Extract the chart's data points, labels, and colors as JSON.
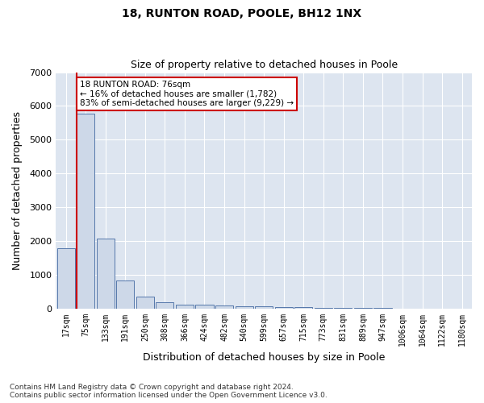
{
  "title1": "18, RUNTON ROAD, POOLE, BH12 1NX",
  "title2": "Size of property relative to detached houses in Poole",
  "xlabel": "Distribution of detached houses by size in Poole",
  "ylabel": "Number of detached properties",
  "footnote1": "Contains HM Land Registry data © Crown copyright and database right 2024.",
  "footnote2": "Contains public sector information licensed under the Open Government Licence v3.0.",
  "bar_labels": [
    "17sqm",
    "75sqm",
    "133sqm",
    "191sqm",
    "250sqm",
    "308sqm",
    "366sqm",
    "424sqm",
    "482sqm",
    "540sqm",
    "599sqm",
    "657sqm",
    "715sqm",
    "773sqm",
    "831sqm",
    "889sqm",
    "947sqm",
    "1006sqm",
    "1064sqm",
    "1122sqm",
    "1180sqm"
  ],
  "bar_values": [
    1780,
    5780,
    2060,
    820,
    360,
    195,
    120,
    100,
    95,
    70,
    55,
    45,
    40,
    5,
    5,
    5,
    5,
    3,
    3,
    3,
    3
  ],
  "bar_color": "#cdd8e8",
  "bar_edgecolor": "#5577aa",
  "red_line_color": "#cc0000",
  "ylim": [
    0,
    7000
  ],
  "yticks": [
    0,
    1000,
    2000,
    3000,
    4000,
    5000,
    6000,
    7000
  ],
  "annotation_text": "18 RUNTON ROAD: 76sqm\n← 16% of detached houses are smaller (1,782)\n83% of semi-detached houses are larger (9,229) →",
  "annotation_box_color": "white",
  "annotation_box_edgecolor": "#cc0000",
  "background_color": "#dde5f0",
  "plot_background": "#dde5f0"
}
